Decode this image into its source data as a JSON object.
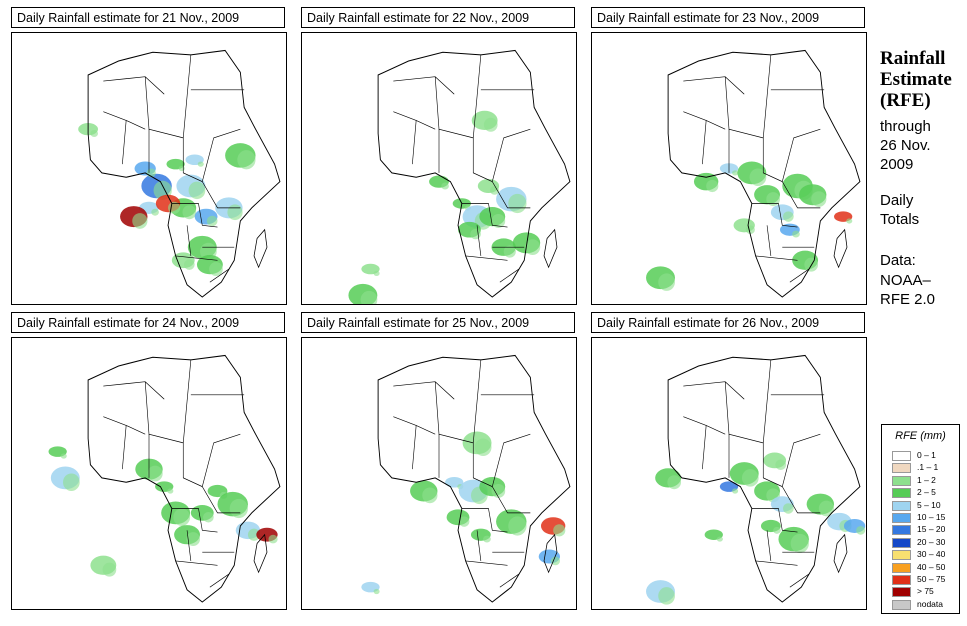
{
  "panels": [
    {
      "title": "Daily Rainfall estimate for  21 Nov., 2009",
      "blobs": [
        [
          215,
          150,
          1
        ],
        [
          235,
          175,
          2
        ],
        [
          225,
          200,
          1
        ],
        [
          255,
          210,
          3
        ],
        [
          180,
          200,
          2
        ],
        [
          190,
          175,
          4
        ],
        [
          160,
          210,
          6
        ],
        [
          205,
          195,
          5
        ],
        [
          175,
          155,
          3
        ],
        [
          240,
          145,
          2
        ],
        [
          250,
          245,
          1
        ],
        [
          260,
          265,
          1
        ],
        [
          225,
          260,
          0
        ],
        [
          100,
          110,
          0
        ],
        [
          300,
          140,
          1
        ],
        [
          285,
          200,
          2
        ]
      ]
    },
    {
      "title": "Daily Rainfall estimate for  22 Nov., 2009",
      "blobs": [
        [
          210,
          195,
          1
        ],
        [
          230,
          210,
          2
        ],
        [
          250,
          210,
          1
        ],
        [
          220,
          225,
          1
        ],
        [
          180,
          170,
          1
        ],
        [
          275,
          190,
          2
        ],
        [
          295,
          240,
          1
        ],
        [
          265,
          245,
          1
        ],
        [
          245,
          175,
          0
        ],
        [
          90,
          270,
          0
        ],
        [
          80,
          300,
          1
        ],
        [
          240,
          100,
          0
        ]
      ]
    },
    {
      "title": "Daily Rainfall estimate for  23 Nov., 2009",
      "blobs": [
        [
          180,
          155,
          2
        ],
        [
          210,
          160,
          1
        ],
        [
          230,
          185,
          1
        ],
        [
          250,
          205,
          2
        ],
        [
          260,
          225,
          3
        ],
        [
          270,
          175,
          1
        ],
        [
          290,
          185,
          1
        ],
        [
          150,
          170,
          1
        ],
        [
          200,
          220,
          0
        ],
        [
          330,
          210,
          5
        ],
        [
          90,
          280,
          1
        ],
        [
          280,
          260,
          1
        ]
      ]
    },
    {
      "title": "Daily Rainfall estimate for  24 Nov., 2009",
      "blobs": [
        [
          200,
          170,
          1
        ],
        [
          215,
          200,
          1
        ],
        [
          230,
          225,
          1
        ],
        [
          250,
          200,
          1
        ],
        [
          270,
          175,
          1
        ],
        [
          290,
          190,
          1
        ],
        [
          180,
          150,
          1
        ],
        [
          310,
          220,
          2
        ],
        [
          335,
          225,
          6
        ],
        [
          60,
          130,
          1
        ],
        [
          70,
          160,
          2
        ],
        [
          120,
          260,
          0
        ]
      ]
    },
    {
      "title": "Daily Rainfall estimate for  25 Nov., 2009",
      "blobs": [
        [
          200,
          165,
          2
        ],
        [
          225,
          175,
          2
        ],
        [
          250,
          170,
          1
        ],
        [
          205,
          205,
          1
        ],
        [
          235,
          225,
          1
        ],
        [
          275,
          210,
          1
        ],
        [
          160,
          175,
          1
        ],
        [
          330,
          215,
          5
        ],
        [
          325,
          250,
          3
        ],
        [
          90,
          285,
          2
        ],
        [
          230,
          120,
          0
        ]
      ]
    },
    {
      "title": "Daily Rainfall estimate for  26 Nov., 2009",
      "blobs": [
        [
          180,
          170,
          4
        ],
        [
          200,
          155,
          1
        ],
        [
          230,
          175,
          1
        ],
        [
          250,
          190,
          2
        ],
        [
          235,
          215,
          1
        ],
        [
          265,
          230,
          1
        ],
        [
          300,
          190,
          1
        ],
        [
          325,
          210,
          2
        ],
        [
          345,
          215,
          3
        ],
        [
          160,
          225,
          1
        ],
        [
          90,
          290,
          2
        ],
        [
          100,
          160,
          1
        ],
        [
          240,
          140,
          0
        ]
      ]
    }
  ],
  "side": {
    "title": "Rainfall Estimate (RFE)",
    "through": "through",
    "date": "26 Nov. 2009",
    "totals": "Daily Totals",
    "data_label": "Data:",
    "source": "NOAA– RFE 2.0"
  },
  "legend": {
    "title": "RFE (mm)",
    "items": [
      {
        "label": "0 – 1",
        "color": "#ffffff"
      },
      {
        "label": ".1 – 1",
        "color": "#f0d8c0"
      },
      {
        "label": "1 – 2",
        "color": "#8ee08e"
      },
      {
        "label": "2 – 5",
        "color": "#56cc56"
      },
      {
        "label": "5 – 10",
        "color": "#9fd4f0"
      },
      {
        "label": "10 – 15",
        "color": "#58a8ee"
      },
      {
        "label": "15 – 20",
        "color": "#3478e0"
      },
      {
        "label": "20 – 30",
        "color": "#1448c8"
      },
      {
        "label": "30 – 40",
        "color": "#f8e070"
      },
      {
        "label": "40 – 50",
        "color": "#f8a020"
      },
      {
        "label": "50 – 75",
        "color": "#e03018"
      },
      {
        "label": "> 75",
        "color": "#a00000"
      },
      {
        "label": "nodata",
        "color": "#c8c8c8"
      }
    ]
  }
}
